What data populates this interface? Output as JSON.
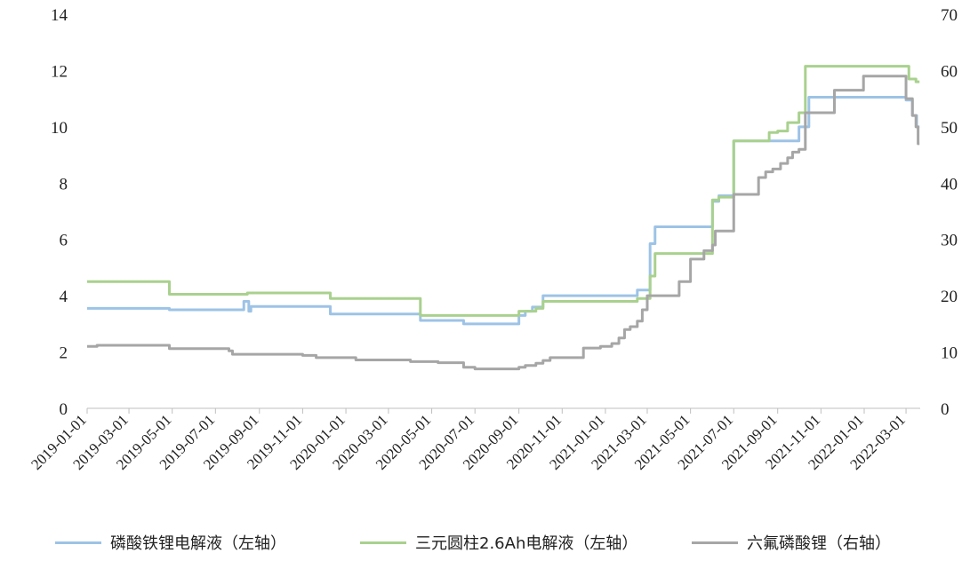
{
  "chart_data": {
    "type": "line",
    "x_type": "date",
    "y_left": {
      "ylim": [
        0,
        14
      ],
      "ticks": [
        "0",
        "2",
        "4",
        "6",
        "8",
        "10",
        "12",
        "14"
      ]
    },
    "y_right": {
      "ylim": [
        0,
        70
      ],
      "ticks": [
        "0",
        "10",
        "20",
        "30",
        "40",
        "50",
        "60",
        "70"
      ]
    },
    "x_ticks": [
      "2019-01-01",
      "2019-03-01",
      "2019-05-01",
      "2019-07-01",
      "2019-09-01",
      "2019-11-01",
      "2020-01-01",
      "2020-03-01",
      "2020-05-01",
      "2020-07-01",
      "2020-09-01",
      "2020-11-01",
      "2021-01-01",
      "2021-03-01",
      "2021-05-01",
      "2021-07-01",
      "2021-09-01",
      "2021-11-01",
      "2022-01-01",
      "2022-03-01"
    ],
    "x_range": [
      "2019-01-01",
      "2022-03-21"
    ],
    "legend_position": "bottom",
    "grid": false,
    "series": [
      {
        "name": "磷酸铁锂电解液（左轴）",
        "axis": "left",
        "color": "#9dc3e6",
        "points": [
          [
            "2019-01-01",
            3.55
          ],
          [
            "2019-04-27",
            3.55
          ],
          [
            "2019-04-27",
            3.5
          ],
          [
            "2019-08-10",
            3.5
          ],
          [
            "2019-08-10",
            3.8
          ],
          [
            "2019-08-17",
            3.8
          ],
          [
            "2019-08-17",
            3.45
          ],
          [
            "2019-08-20",
            3.45
          ],
          [
            "2019-08-20",
            3.62
          ],
          [
            "2019-12-10",
            3.62
          ],
          [
            "2019-12-10",
            3.35
          ],
          [
            "2020-04-15",
            3.35
          ],
          [
            "2020-04-15",
            3.12
          ],
          [
            "2020-06-15",
            3.12
          ],
          [
            "2020-06-15",
            3.0
          ],
          [
            "2020-09-01",
            3.0
          ],
          [
            "2020-09-01",
            3.3
          ],
          [
            "2020-09-10",
            3.3
          ],
          [
            "2020-09-10",
            3.45
          ],
          [
            "2020-09-20",
            3.45
          ],
          [
            "2020-09-20",
            3.6
          ],
          [
            "2020-10-05",
            3.6
          ],
          [
            "2020-10-05",
            4.0
          ],
          [
            "2021-02-15",
            4.0
          ],
          [
            "2021-02-15",
            4.2
          ],
          [
            "2021-03-05",
            4.2
          ],
          [
            "2021-03-05",
            5.85
          ],
          [
            "2021-03-12",
            5.85
          ],
          [
            "2021-03-12",
            6.45
          ],
          [
            "2021-06-01",
            6.45
          ],
          [
            "2021-06-01",
            7.35
          ],
          [
            "2021-06-10",
            7.35
          ],
          [
            "2021-06-10",
            7.55
          ],
          [
            "2021-07-01",
            7.55
          ],
          [
            "2021-07-01",
            9.5
          ],
          [
            "2021-10-01",
            9.5
          ],
          [
            "2021-10-01",
            10.0
          ],
          [
            "2021-10-15",
            10.0
          ],
          [
            "2021-10-15",
            11.05
          ],
          [
            "2022-03-01",
            11.05
          ],
          [
            "2022-03-01",
            10.95
          ],
          [
            "2022-03-10",
            10.95
          ],
          [
            "2022-03-10",
            10.4
          ],
          [
            "2022-03-16",
            10.4
          ],
          [
            "2022-03-16",
            10.0
          ],
          [
            "2022-03-20",
            10.0
          ]
        ]
      },
      {
        "name": "三元圆柱2.6Ah电解液（左轴）",
        "axis": "left",
        "color": "#a9d18e",
        "points": [
          [
            "2019-01-01",
            4.5
          ],
          [
            "2019-04-27",
            4.5
          ],
          [
            "2019-04-27",
            4.05
          ],
          [
            "2019-08-15",
            4.05
          ],
          [
            "2019-08-15",
            4.1
          ],
          [
            "2019-12-10",
            4.1
          ],
          [
            "2019-12-10",
            3.9
          ],
          [
            "2020-04-15",
            3.9
          ],
          [
            "2020-04-15",
            3.3
          ],
          [
            "2020-09-01",
            3.3
          ],
          [
            "2020-09-01",
            3.45
          ],
          [
            "2020-09-25",
            3.45
          ],
          [
            "2020-09-25",
            3.55
          ],
          [
            "2020-10-05",
            3.55
          ],
          [
            "2020-10-05",
            3.8
          ],
          [
            "2021-02-15",
            3.8
          ],
          [
            "2021-02-15",
            3.9
          ],
          [
            "2021-03-05",
            3.9
          ],
          [
            "2021-03-05",
            4.7
          ],
          [
            "2021-03-12",
            4.7
          ],
          [
            "2021-03-12",
            5.5
          ],
          [
            "2021-06-01",
            5.5
          ],
          [
            "2021-06-01",
            7.4
          ],
          [
            "2021-06-10",
            7.4
          ],
          [
            "2021-06-10",
            7.5
          ],
          [
            "2021-07-01",
            7.5
          ],
          [
            "2021-07-01",
            9.5
          ],
          [
            "2021-08-20",
            9.5
          ],
          [
            "2021-08-20",
            9.8
          ],
          [
            "2021-09-01",
            9.8
          ],
          [
            "2021-09-01",
            9.85
          ],
          [
            "2021-09-15",
            9.85
          ],
          [
            "2021-09-15",
            10.15
          ],
          [
            "2021-10-01",
            10.15
          ],
          [
            "2021-10-01",
            10.5
          ],
          [
            "2021-10-10",
            10.5
          ],
          [
            "2021-10-10",
            12.15
          ],
          [
            "2022-03-05",
            12.15
          ],
          [
            "2022-03-05",
            11.7
          ],
          [
            "2022-03-15",
            11.7
          ],
          [
            "2022-03-15",
            11.6
          ],
          [
            "2022-03-20",
            11.6
          ]
        ]
      },
      {
        "name": "六氟磷酸锂（右轴）",
        "axis": "right",
        "color": "#a6a6a6",
        "points": [
          [
            "2019-01-01",
            11.0
          ],
          [
            "2019-01-15",
            11.0
          ],
          [
            "2019-01-15",
            11.2
          ],
          [
            "2019-04-27",
            11.2
          ],
          [
            "2019-04-27",
            10.6
          ],
          [
            "2019-07-20",
            10.6
          ],
          [
            "2019-07-20",
            10.2
          ],
          [
            "2019-07-25",
            10.2
          ],
          [
            "2019-07-25",
            9.6
          ],
          [
            "2019-11-01",
            9.6
          ],
          [
            "2019-11-01",
            9.4
          ],
          [
            "2019-11-20",
            9.4
          ],
          [
            "2019-11-20",
            9.0
          ],
          [
            "2020-01-15",
            9.0
          ],
          [
            "2020-01-15",
            8.6
          ],
          [
            "2020-04-01",
            8.6
          ],
          [
            "2020-04-01",
            8.3
          ],
          [
            "2020-05-10",
            8.3
          ],
          [
            "2020-05-10",
            8.1
          ],
          [
            "2020-06-15",
            8.1
          ],
          [
            "2020-06-15",
            7.3
          ],
          [
            "2020-07-01",
            7.3
          ],
          [
            "2020-07-01",
            7.0
          ],
          [
            "2020-09-01",
            7.0
          ],
          [
            "2020-09-01",
            7.3
          ],
          [
            "2020-09-10",
            7.3
          ],
          [
            "2020-09-10",
            7.6
          ],
          [
            "2020-09-25",
            7.6
          ],
          [
            "2020-09-25",
            8.0
          ],
          [
            "2020-10-05",
            8.0
          ],
          [
            "2020-10-05",
            8.5
          ],
          [
            "2020-10-15",
            8.5
          ],
          [
            "2020-10-15",
            9.0
          ],
          [
            "2020-12-01",
            9.0
          ],
          [
            "2020-12-01",
            10.7
          ],
          [
            "2020-12-25",
            10.7
          ],
          [
            "2020-12-25",
            11.0
          ],
          [
            "2021-01-10",
            11.0
          ],
          [
            "2021-01-10",
            11.5
          ],
          [
            "2021-01-20",
            11.5
          ],
          [
            "2021-01-20",
            12.5
          ],
          [
            "2021-01-28",
            12.5
          ],
          [
            "2021-01-28",
            14.0
          ],
          [
            "2021-02-05",
            14.0
          ],
          [
            "2021-02-05",
            14.5
          ],
          [
            "2021-02-15",
            14.5
          ],
          [
            "2021-02-15",
            15.5
          ],
          [
            "2021-02-22",
            15.5
          ],
          [
            "2021-02-22",
            17.5
          ],
          [
            "2021-03-01",
            17.5
          ],
          [
            "2021-03-01",
            20.0
          ],
          [
            "2021-04-15",
            20.0
          ],
          [
            "2021-04-15",
            22.5
          ],
          [
            "2021-05-01",
            22.5
          ],
          [
            "2021-05-01",
            26.5
          ],
          [
            "2021-05-20",
            26.5
          ],
          [
            "2021-05-20",
            28.0
          ],
          [
            "2021-06-01",
            28.0
          ],
          [
            "2021-06-01",
            29.0
          ],
          [
            "2021-06-05",
            29.0
          ],
          [
            "2021-06-05",
            31.5
          ],
          [
            "2021-07-01",
            31.5
          ],
          [
            "2021-07-01",
            38.0
          ],
          [
            "2021-08-05",
            38.0
          ],
          [
            "2021-08-05",
            41.0
          ],
          [
            "2021-08-15",
            41.0
          ],
          [
            "2021-08-15",
            42.0
          ],
          [
            "2021-08-25",
            42.0
          ],
          [
            "2021-08-25",
            42.5
          ],
          [
            "2021-09-05",
            42.5
          ],
          [
            "2021-09-05",
            43.5
          ],
          [
            "2021-09-15",
            43.5
          ],
          [
            "2021-09-15",
            44.5
          ],
          [
            "2021-09-22",
            44.5
          ],
          [
            "2021-09-22",
            45.5
          ],
          [
            "2021-10-01",
            45.5
          ],
          [
            "2021-10-01",
            46.0
          ],
          [
            "2021-10-10",
            46.0
          ],
          [
            "2021-10-10",
            52.5
          ],
          [
            "2021-11-20",
            52.5
          ],
          [
            "2021-11-20",
            56.5
          ],
          [
            "2021-12-31",
            56.5
          ],
          [
            "2021-12-31",
            59.0
          ],
          [
            "2022-03-01",
            59.0
          ],
          [
            "2022-03-01",
            55.0
          ],
          [
            "2022-03-10",
            55.0
          ],
          [
            "2022-03-10",
            52.0
          ],
          [
            "2022-03-15",
            52.0
          ],
          [
            "2022-03-15",
            50.0
          ],
          [
            "2022-03-18",
            50.0
          ],
          [
            "2022-03-18",
            47.0
          ],
          [
            "2022-03-20",
            47.0
          ]
        ]
      }
    ]
  }
}
